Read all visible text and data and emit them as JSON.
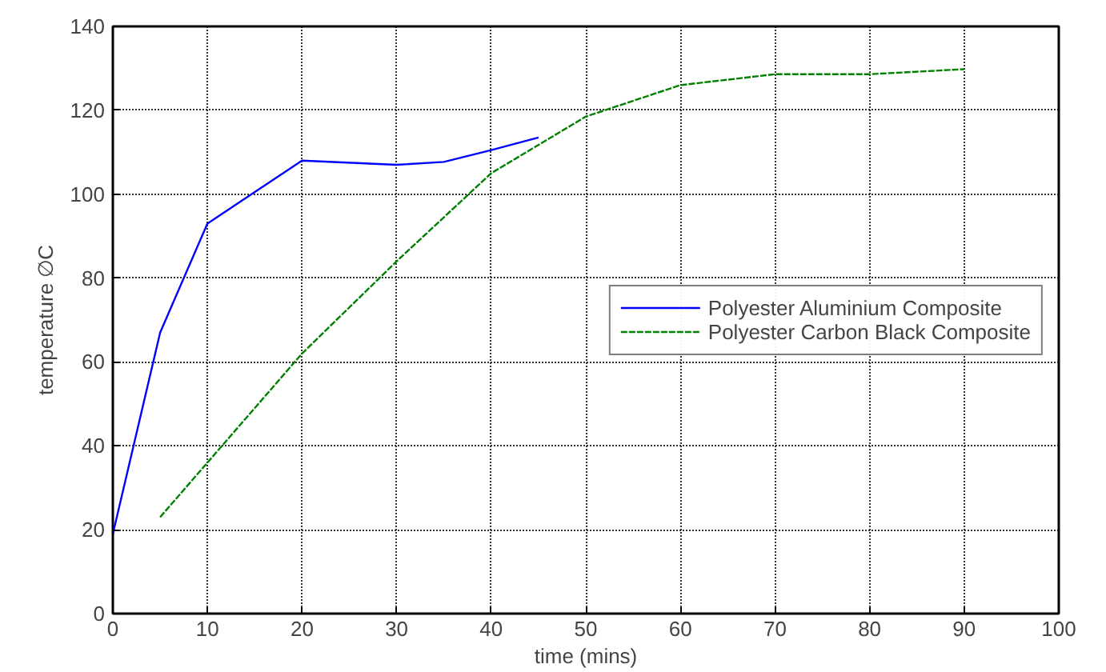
{
  "chart_data": {
    "type": "line",
    "xlabel": "time (mins)",
    "ylabel": "temperature ∅C",
    "xlim": [
      0,
      100
    ],
    "ylim": [
      0,
      140
    ],
    "xticks": [
      0,
      10,
      20,
      30,
      40,
      50,
      60,
      70,
      80,
      90,
      100
    ],
    "yticks": [
      0,
      20,
      40,
      60,
      80,
      100,
      120,
      140
    ],
    "grid": true,
    "legend": "right",
    "series": [
      {
        "name": "Polyester Aluminium Composite",
        "color": "#0000ff",
        "line_style": "solid",
        "x": [
          0,
          5,
          10,
          20,
          30,
          35,
          40,
          45
        ],
        "values": [
          19,
          67,
          93,
          108,
          107,
          107.7,
          110.5,
          113.5
        ]
      },
      {
        "name": "Polyester Carbon Black Composite",
        "color": "#008000",
        "line_style": "dashed",
        "x": [
          5,
          10,
          20,
          30,
          40,
          50,
          60,
          70,
          80,
          90
        ],
        "values": [
          23,
          36,
          62,
          84,
          105,
          118.5,
          126,
          128.6,
          128.6,
          129.8
        ]
      }
    ]
  }
}
